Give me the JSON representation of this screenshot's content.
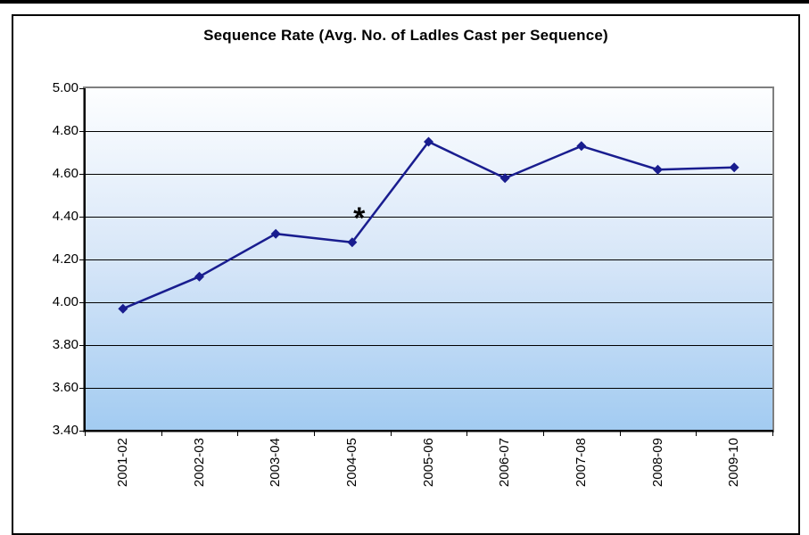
{
  "chart_data": {
    "type": "line",
    "title": "Sequence Rate (Avg. No. of Ladles Cast per Sequence)",
    "categories": [
      "2001-02",
      "2002-03",
      "2003-04",
      "2004-05",
      "2005-06",
      "2006-07",
      "2007-08",
      "2008-09",
      "2009-10"
    ],
    "values": [
      3.97,
      4.12,
      4.32,
      4.28,
      4.75,
      4.58,
      4.73,
      4.62,
      4.63
    ],
    "ylim": [
      3.4,
      5.0
    ],
    "ytick_step": 0.2,
    "ytick_labels": [
      "5.00",
      "4.80",
      "4.60",
      "4.40",
      "4.20",
      "4.00",
      "3.80",
      "3.60",
      "3.40"
    ],
    "grid": true,
    "legend_position": "none",
    "marker": "diamond",
    "annotation": {
      "text": "*",
      "target_category": "2004-05"
    },
    "colors": {
      "series": "#191d8f",
      "gridline": "#000000",
      "plot_border": "#7f7f7f",
      "axis": "#000000",
      "plot_bg_top": "#fdfeff",
      "plot_bg_mid": "#d7e6f8",
      "plot_bg_bottom": "#a2cbf1",
      "chart_bg": "#ffffff",
      "chart_border": "#000000",
      "annotation_color": "#000000"
    }
  }
}
